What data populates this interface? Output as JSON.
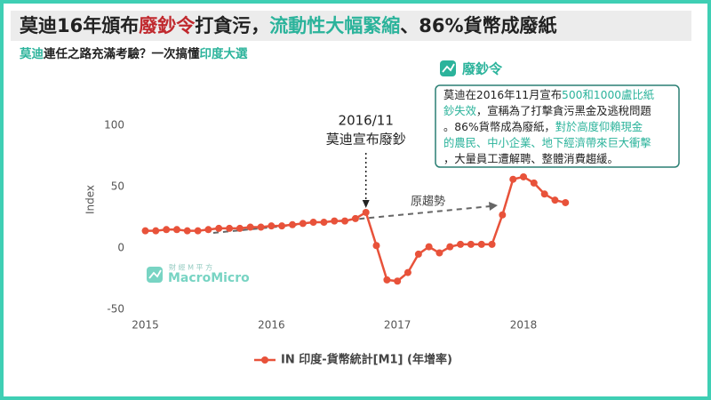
{
  "header": {
    "title": [
      {
        "text": "莫迪16年頒布",
        "color": "#222222"
      },
      {
        "text": "廢鈔令",
        "color": "#c0282d"
      },
      {
        "text": "打貪污，",
        "color": "#222222"
      },
      {
        "text": "流動性大幅緊縮",
        "color": "#2bb39b"
      },
      {
        "text": "、86%貨幣成廢紙",
        "color": "#222222"
      }
    ],
    "subtitle": [
      {
        "text": "莫迪",
        "color": "#2bb39b"
      },
      {
        "text": "連任之路充滿考驗？一次搞懂",
        "color": "#222222"
      },
      {
        "text": "印度大選",
        "color": "#2bb39b"
      }
    ]
  },
  "note": {
    "title": "廢鈔令",
    "lines": [
      [
        {
          "text": "莫迪在2016年11月宣布",
          "color": "#222222"
        },
        {
          "text": "500和1000盧比紙",
          "color": "#2bb39b"
        }
      ],
      [
        {
          "text": "鈔失效",
          "color": "#2bb39b"
        },
        {
          "text": "，宣稱為了打擊貪污黑金及逃稅問題",
          "color": "#222222"
        }
      ],
      [
        {
          "text": "。86%貨幣成為廢紙，",
          "color": "#222222"
        },
        {
          "text": "對於高度仰賴現金",
          "color": "#2bb39b"
        }
      ],
      [
        {
          "text": "的農民、中小企業、地下經濟帶來巨大衝擊",
          "color": "#2bb39b"
        }
      ],
      [
        {
          "text": "，大量員工遭解聘、整體消費趨緩。",
          "color": "#222222"
        }
      ]
    ]
  },
  "watermark": {
    "small": "財 經 M 平 方",
    "brand": "MacroMicro"
  },
  "chart_data": {
    "type": "line",
    "y_label": "Index",
    "event_date": "2016/11",
    "event_text": "莫迪宣布廢鈔",
    "trend_label": "原趨勢",
    "x": [
      2015,
      2015.083,
      2015.167,
      2015.25,
      2015.333,
      2015.417,
      2015.5,
      2015.583,
      2015.667,
      2015.75,
      2015.833,
      2015.917,
      2016,
      2016.083,
      2016.167,
      2016.25,
      2016.333,
      2016.417,
      2016.5,
      2016.583,
      2016.667,
      2016.75,
      2016.833,
      2016.917,
      2017,
      2017.083,
      2017.167,
      2017.25,
      2017.333,
      2017.417,
      2017.5,
      2017.583,
      2017.667,
      2017.75,
      2017.833,
      2017.917,
      2018,
      2018.083,
      2018.167,
      2018.25,
      2018.333
    ],
    "series": [
      {
        "name": "IN 印度-貨幣統計[M1] (年增率)",
        "color": "#e8523a",
        "values": [
          14,
          14,
          15,
          15,
          14,
          14,
          15,
          16,
          16,
          16,
          17,
          17,
          18,
          18,
          19,
          20,
          21,
          21,
          22,
          22,
          24,
          29,
          2,
          -26,
          -27,
          -20,
          -5,
          1,
          -4,
          1,
          3,
          3,
          3,
          3,
          27,
          56,
          58,
          53,
          44,
          39,
          37
        ]
      }
    ],
    "xlim": [
      2014.94,
      2018.43
    ],
    "xticks": [
      2015,
      2016,
      2017,
      2018
    ],
    "ylim": [
      -50,
      100
    ],
    "yticks": [
      -50,
      0,
      50,
      100
    ],
    "grid": false
  }
}
